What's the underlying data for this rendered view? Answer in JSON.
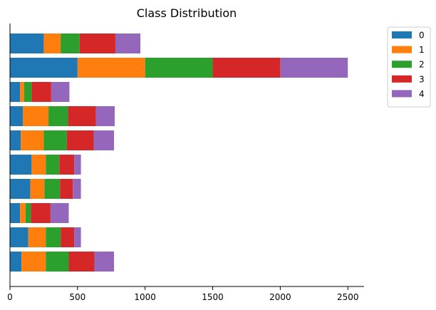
{
  "chart_data": {
    "type": "bar",
    "orientation": "horizontal",
    "stacked": true,
    "title": "Class Distribution",
    "xlabel": "",
    "ylabel": "",
    "xlim": [
      0,
      2620
    ],
    "xticks": [
      0,
      500,
      1000,
      1500,
      2000,
      2500
    ],
    "grid": false,
    "legend_position": "upper right, outside plot",
    "rows": 10,
    "series": [
      {
        "name": "0",
        "color": "#1f77b4",
        "values": [
          250,
          500,
          75,
          95,
          80,
          160,
          150,
          75,
          135,
          85
        ]
      },
      {
        "name": "1",
        "color": "#ff7f0e",
        "values": [
          125,
          500,
          30,
          190,
          170,
          105,
          105,
          40,
          130,
          180
        ]
      },
      {
        "name": "2",
        "color": "#2ca02c",
        "values": [
          140,
          500,
          55,
          145,
          170,
          100,
          115,
          40,
          110,
          170
        ]
      },
      {
        "name": "3",
        "color": "#d62728",
        "values": [
          265,
          500,
          145,
          205,
          200,
          110,
          95,
          145,
          100,
          190
        ]
      },
      {
        "name": "4",
        "color": "#9467bd",
        "values": [
          185,
          500,
          135,
          140,
          150,
          50,
          60,
          135,
          50,
          145
        ]
      }
    ]
  }
}
